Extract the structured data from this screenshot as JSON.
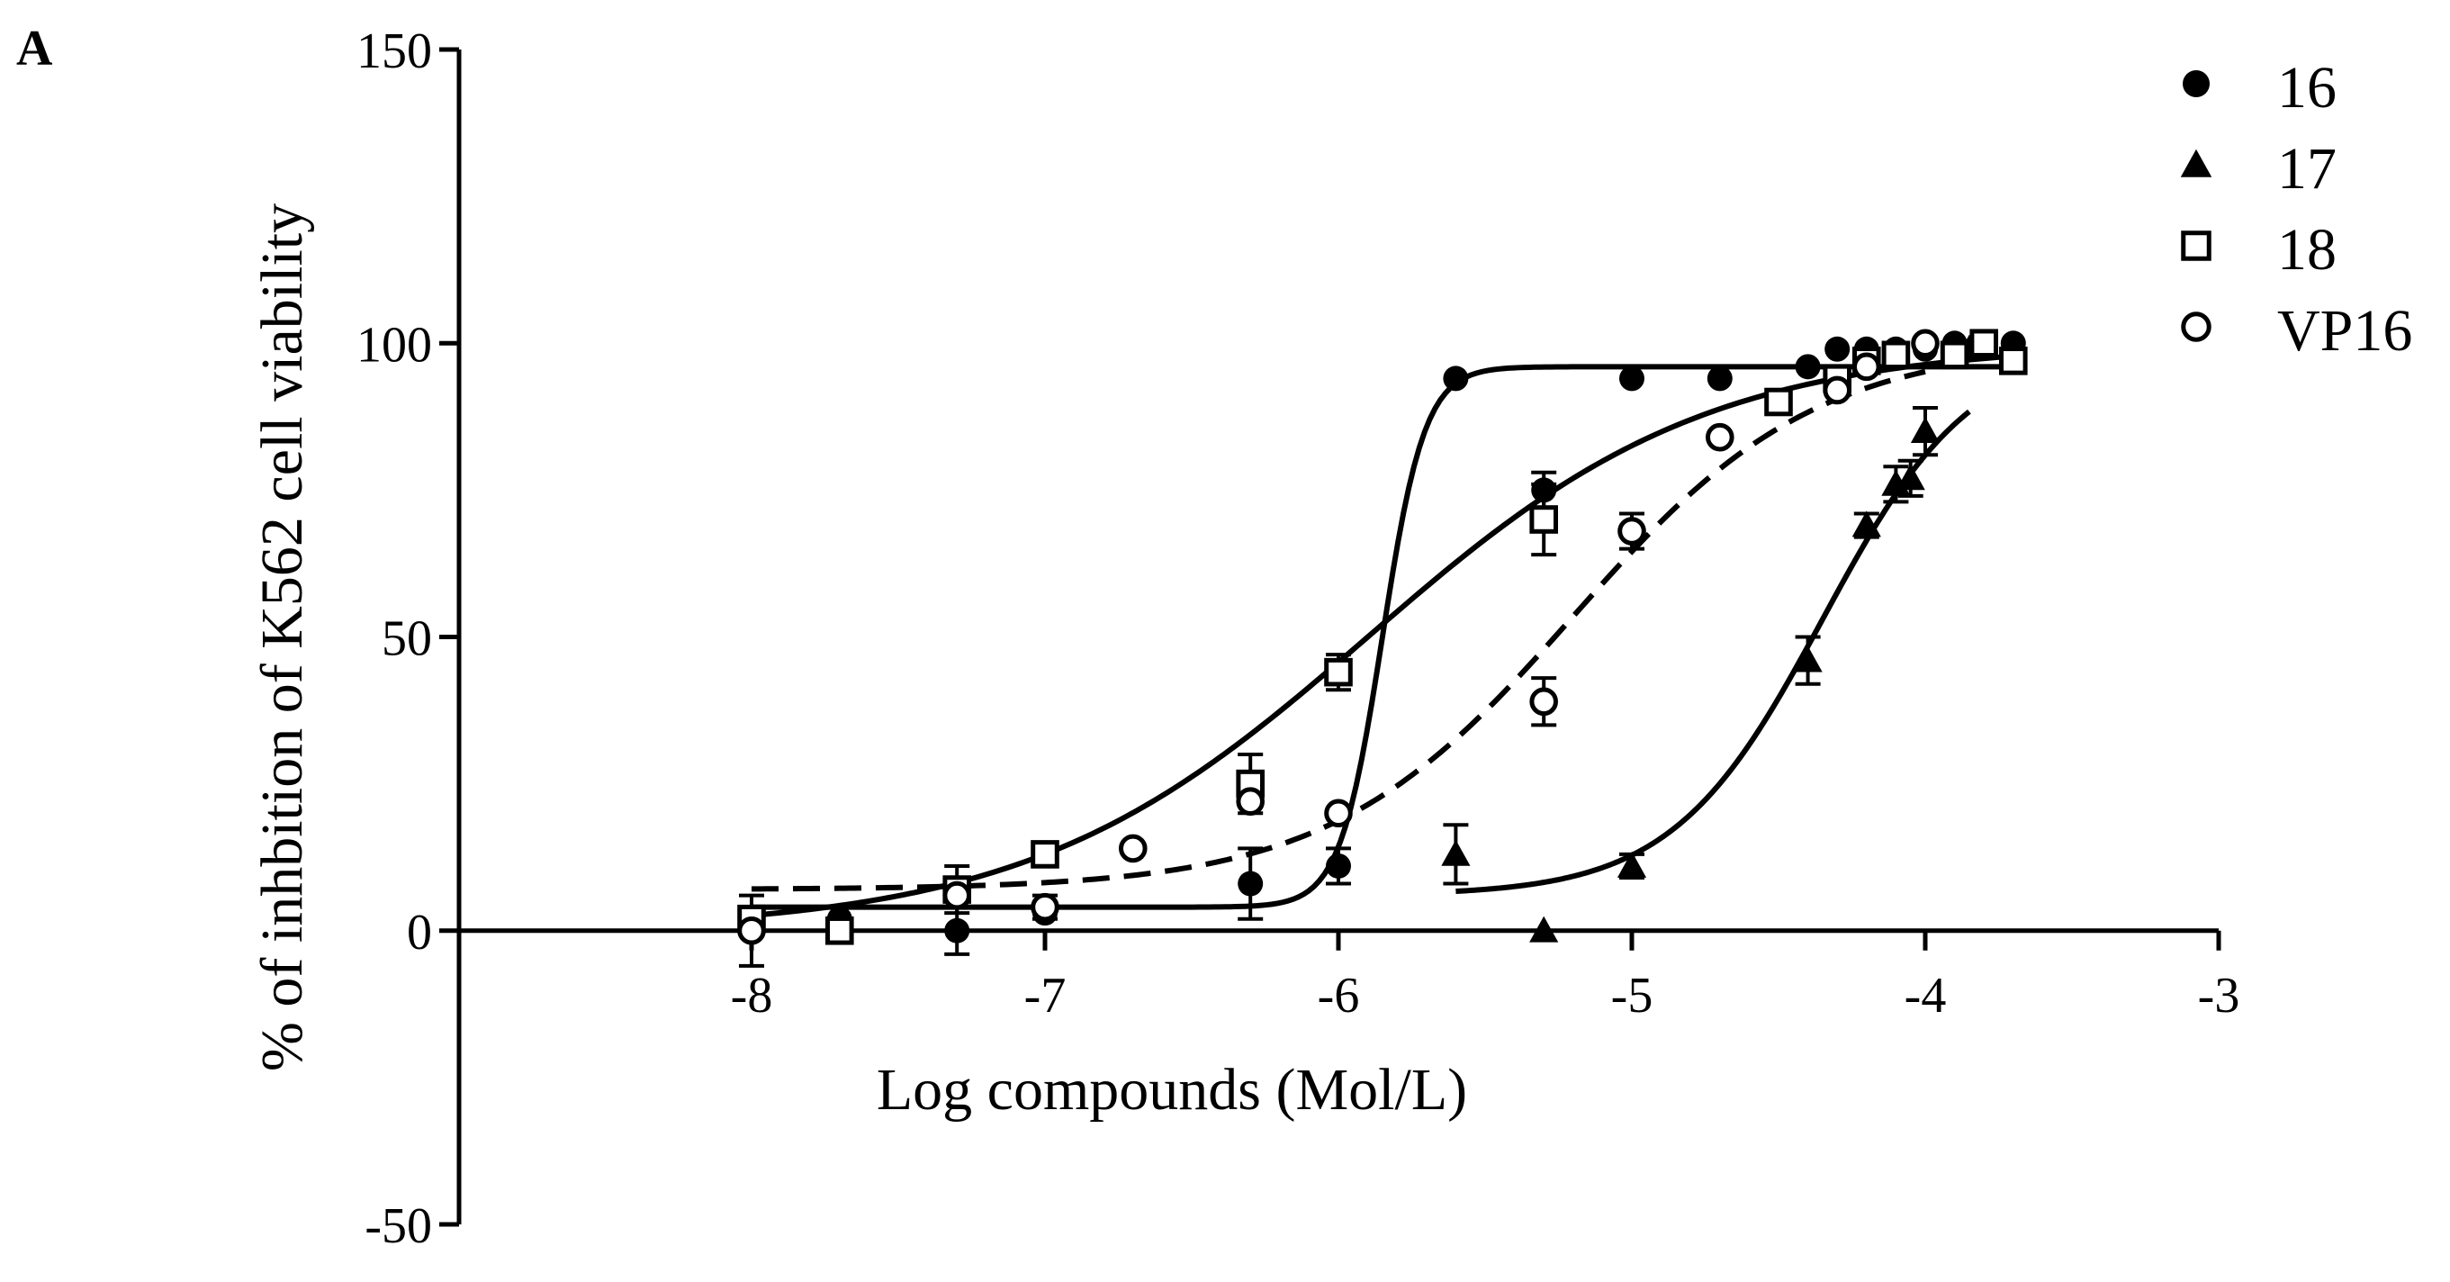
{
  "panel_label": "A",
  "chart_data": {
    "type": "scatter",
    "xlabel": "Log compounds (Mol/L)",
    "ylabel": "% of inhbition of K562 cell viability",
    "xlim": [
      -8,
      -3
    ],
    "ylim": [
      -50,
      150
    ],
    "x_ticks": [
      -8,
      -7,
      -6,
      -5,
      -4,
      -3
    ],
    "y_ticks": [
      -50,
      0,
      50,
      100,
      150
    ],
    "x_tick_labels": [
      "-8",
      "-7",
      "-6",
      "-5",
      "-4",
      "-3"
    ],
    "y_tick_labels": [
      "-50",
      "0",
      "50",
      "100",
      "150"
    ],
    "x_axis_at_y": 0,
    "legend_position": "top-right",
    "grid": false,
    "color": "#000000",
    "series": [
      {
        "name": "16",
        "marker": "filled-circle",
        "curve": "solid",
        "points": [
          {
            "x": -8.0,
            "y": 0,
            "err": 6
          },
          {
            "x": -7.7,
            "y": 2,
            "err": 0
          },
          {
            "x": -7.3,
            "y": 0,
            "err": 4
          },
          {
            "x": -7.0,
            "y": 3,
            "err": 0
          },
          {
            "x": -6.3,
            "y": 8,
            "err": 6
          },
          {
            "x": -6.0,
            "y": 11,
            "err": 3
          },
          {
            "x": -5.6,
            "y": 94,
            "err": 0
          },
          {
            "x": -5.3,
            "y": 75,
            "err": 3
          },
          {
            "x": -5.0,
            "y": 94,
            "err": 0
          },
          {
            "x": -4.7,
            "y": 94,
            "err": 0
          },
          {
            "x": -4.4,
            "y": 96,
            "err": 0
          },
          {
            "x": -4.3,
            "y": 99,
            "err": 0
          },
          {
            "x": -4.2,
            "y": 99,
            "err": 0
          },
          {
            "x": -4.1,
            "y": 99,
            "err": 0
          },
          {
            "x": -4.0,
            "y": 99,
            "err": 0
          },
          {
            "x": -3.9,
            "y": 100,
            "err": 0
          },
          {
            "x": -3.8,
            "y": 100,
            "err": 0
          },
          {
            "x": -3.7,
            "y": 100,
            "err": 0
          }
        ],
        "fit": {
          "bottom": 4,
          "top": 96,
          "logEC50": -5.85,
          "hill": 6
        }
      },
      {
        "name": "17",
        "marker": "filled-triangle",
        "curve": "solid",
        "points": [
          {
            "x": -5.6,
            "y": 13,
            "err": 5
          },
          {
            "x": -5.3,
            "y": 0,
            "err": 0
          },
          {
            "x": -5.0,
            "y": 11,
            "err": 2
          },
          {
            "x": -4.4,
            "y": 46,
            "err": 4
          },
          {
            "x": -4.2,
            "y": 69,
            "err": 2
          },
          {
            "x": -4.1,
            "y": 76,
            "err": 3
          },
          {
            "x": -4.05,
            "y": 77,
            "err": 3
          },
          {
            "x": -4.0,
            "y": 85,
            "err": 4
          },
          {
            "x": -3.85,
            "y": 99,
            "err": 0
          }
        ],
        "fit": {
          "bottom": 6,
          "top": 100,
          "logEC50": -4.35,
          "hill": 1.7,
          "x_start": -5.6
        }
      },
      {
        "name": "18",
        "marker": "open-square",
        "curve": "solid",
        "points": [
          {
            "x": -8.0,
            "y": 2,
            "err": 2
          },
          {
            "x": -7.7,
            "y": 0,
            "err": 0
          },
          {
            "x": -7.3,
            "y": 7,
            "err": 4
          },
          {
            "x": -7.0,
            "y": 13,
            "err": 0
          },
          {
            "x": -6.3,
            "y": 25,
            "err": 5
          },
          {
            "x": -6.0,
            "y": 44,
            "err": 3
          },
          {
            "x": -5.3,
            "y": 70,
            "err": 6
          },
          {
            "x": -4.5,
            "y": 90,
            "err": 0
          },
          {
            "x": -4.3,
            "y": 94,
            "err": 0
          },
          {
            "x": -4.2,
            "y": 97,
            "err": 0
          },
          {
            "x": -4.1,
            "y": 98,
            "err": 0
          },
          {
            "x": -3.9,
            "y": 98,
            "err": 0
          },
          {
            "x": -3.8,
            "y": 100,
            "err": 0
          },
          {
            "x": -3.7,
            "y": 97,
            "err": 0
          }
        ],
        "fit": {
          "bottom": 0,
          "top": 100,
          "logEC50": -5.9,
          "hill": 0.75
        }
      },
      {
        "name": "VP16",
        "marker": "open-circle",
        "curve": "dashed",
        "points": [
          {
            "x": -8.0,
            "y": 0,
            "err": 0
          },
          {
            "x": -7.3,
            "y": 6,
            "err": 0
          },
          {
            "x": -7.0,
            "y": 4,
            "err": 2
          },
          {
            "x": -6.7,
            "y": 14,
            "err": 0
          },
          {
            "x": -6.3,
            "y": 22,
            "err": 0
          },
          {
            "x": -6.0,
            "y": 20,
            "err": 0
          },
          {
            "x": -5.3,
            "y": 39,
            "err": 4
          },
          {
            "x": -5.0,
            "y": 68,
            "err": 3
          },
          {
            "x": -4.7,
            "y": 84,
            "err": 0
          },
          {
            "x": -4.3,
            "y": 92,
            "err": 0
          },
          {
            "x": -4.2,
            "y": 96,
            "err": 0
          },
          {
            "x": -4.0,
            "y": 100,
            "err": 0
          }
        ],
        "fit": {
          "bottom": 7,
          "top": 100,
          "logEC50": -5.2,
          "hill": 1.05
        }
      }
    ]
  }
}
